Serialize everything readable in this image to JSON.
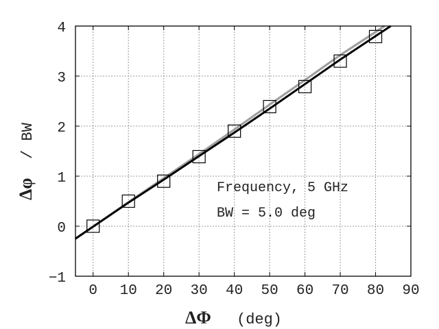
{
  "chart_data": {
    "type": "line",
    "title": "",
    "xlabel_symbol": "ΔΦ",
    "xlabel_unit": "(deg)",
    "ylabel_symbol": "Δφ",
    "ylabel_rest": "/ BW",
    "xlim": [
      -5,
      90
    ],
    "ylim": [
      -1,
      4
    ],
    "xticks": [
      0,
      10,
      20,
      30,
      40,
      50,
      60,
      70,
      80,
      90
    ],
    "yticks": [
      -1,
      0,
      1,
      2,
      3,
      4
    ],
    "grid": true,
    "annotations": [
      "Frequency, 5 GHz",
      "BW = 5.0 deg"
    ],
    "series": [
      {
        "style": "markers",
        "marker": "open-square",
        "color": "#000000",
        "x": [
          0,
          10,
          20,
          30,
          40,
          50,
          60,
          70,
          80
        ],
        "y": [
          0,
          0.5,
          0.9,
          1.39,
          1.9,
          2.39,
          2.79,
          3.3,
          3.79
        ]
      },
      {
        "style": "line",
        "color": "#000000",
        "x": [
          -5,
          10,
          20,
          30,
          40,
          50,
          60,
          70,
          80,
          84.3
        ],
        "y": [
          -0.25,
          0.47,
          0.93,
          1.4,
          1.87,
          2.35,
          2.84,
          3.33,
          3.8,
          4.0
        ]
      },
      {
        "style": "line",
        "color": "#a0a0a0",
        "x": [
          -5,
          10,
          20,
          30,
          40,
          50,
          60,
          70,
          80,
          82.5
        ],
        "y": [
          -0.25,
          0.48,
          0.96,
          1.44,
          1.93,
          2.43,
          2.92,
          3.42,
          3.88,
          4.0
        ]
      }
    ]
  }
}
